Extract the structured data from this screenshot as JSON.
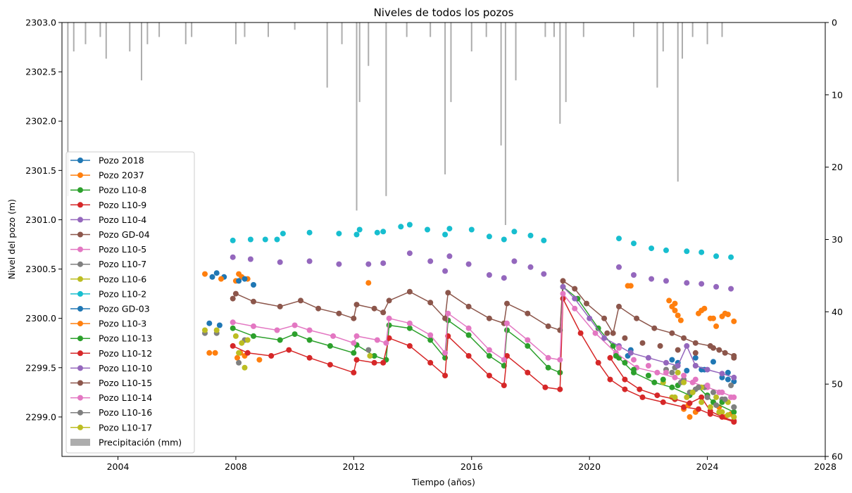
{
  "chart_data": {
    "type": "line",
    "title": "Niveles de todos los pozos",
    "xlabel": "Tiempo (años)",
    "ylabel": "Nivel del pozo (m)",
    "xlim": [
      2002.1,
      2028
    ],
    "ylim": [
      2298.6,
      2303.0
    ],
    "y2lim": [
      60,
      0
    ],
    "x_ticks": [
      2004,
      2008,
      2012,
      2016,
      2020,
      2024,
      2028
    ],
    "y_ticks": [
      2299.0,
      2299.5,
      2300.0,
      2300.5,
      2301.0,
      2301.5,
      2302.0,
      2302.5,
      2303.0
    ],
    "y_tick_labels": [
      "2299.0",
      "2299.5",
      "2300.0",
      "2300.5",
      "2301.0",
      "2301.5",
      "2302.0",
      "2302.5",
      "2303.0"
    ],
    "y2_ticks": [
      0,
      10,
      20,
      30,
      40,
      50,
      60
    ],
    "grid": false,
    "legend_position": "left",
    "series": [
      {
        "name": "Pozo 2018",
        "color": "#1f77b4",
        "gaps": true,
        "x": [
          2007.1,
          2007.2,
          2007.35,
          2007.45,
          2007.6,
          2021.4,
          2022.8,
          2023.0,
          2023.3,
          2023.6,
          2023.9,
          2024.2,
          2024.5,
          2024.7,
          2024.9
        ],
        "y": [
          2299.95,
          2300.42,
          2300.46,
          2299.93,
          2300.42,
          2299.68,
          2299.58,
          2299.55,
          2299.47,
          2299.6,
          2299.48,
          2299.56,
          2299.4,
          2299.38,
          2299.36
        ]
      },
      {
        "name": "Pozo 2037",
        "color": "#ff7f0e",
        "gaps": true,
        "x": [
          2006.95,
          2007.1,
          2007.3,
          2007.5,
          2008.0,
          2008.1,
          2008.2,
          2008.3,
          2008.8,
          2008.05,
          2008.15,
          2008.4,
          2012.5,
          2021.4,
          2022.7,
          2022.8,
          2022.9,
          2023.0,
          2023.1,
          2023.7,
          2023.9,
          2024.1,
          2024.3,
          2024.5,
          2024.7,
          2024.9,
          2023.2,
          2023.4,
          2023.6,
          2024.4,
          2024.6,
          2024.8
        ],
        "y": [
          2300.45,
          2299.65,
          2299.65,
          2300.4,
          2300.38,
          2300.45,
          2300.42,
          2299.62,
          2299.58,
          2299.6,
          2299.65,
          2300.4,
          2300.36,
          2300.33,
          2300.18,
          2300.12,
          2300.08,
          2300.03,
          2299.98,
          2300.05,
          2300.1,
          2300.0,
          2299.92,
          2300.02,
          2300.04,
          2299.97,
          2299.08,
          2299.0,
          2299.05,
          2299.1,
          2299.0,
          2299.03
        ]
      },
      {
        "name": "Pozo L10-8",
        "color": "#2ca02c",
        "gaps": false,
        "x": [
          2007.9,
          2008.6,
          2009.5,
          2010.0,
          2010.5,
          2011.2,
          2012.0,
          2012.1,
          2012.7,
          2013.1,
          2013.2,
          2013.9,
          2014.6,
          2015.1,
          2015.2,
          2015.9,
          2016.6,
          2017.1,
          2017.2,
          2017.9,
          2018.6,
          2019.0,
          2019.1,
          2019.6,
          2020.3,
          2020.8,
          2021.0,
          2021.5,
          2022.2,
          2022.8,
          2023.4,
          2023.7,
          2024.2,
          2024.9
        ],
        "y": [
          2299.9,
          2299.82,
          2299.78,
          2299.84,
          2299.78,
          2299.72,
          2299.65,
          2299.73,
          2299.62,
          2299.58,
          2299.93,
          2299.9,
          2299.78,
          2299.6,
          2299.98,
          2299.83,
          2299.62,
          2299.52,
          2299.88,
          2299.72,
          2299.5,
          2299.45,
          2300.32,
          2300.2,
          2299.9,
          2299.72,
          2299.6,
          2299.45,
          2299.35,
          2299.3,
          2299.22,
          2299.3,
          2299.15,
          2299.05
        ]
      },
      {
        "name": "Pozo L10-9",
        "color": "#d62728",
        "gaps": false,
        "x": [
          2007.9,
          2008.4,
          2009.2,
          2009.8,
          2010.5,
          2011.2,
          2012.0,
          2012.1,
          2012.7,
          2013.0,
          2013.2,
          2013.9,
          2014.6,
          2015.1,
          2015.2,
          2015.9,
          2016.6,
          2017.1,
          2017.2,
          2017.9,
          2018.5,
          2019.0,
          2019.1,
          2019.7,
          2020.3,
          2020.7,
          2021.2,
          2021.8,
          2022.5,
          2023.2,
          2023.7,
          2024.1,
          2024.9
        ],
        "y": [
          2299.72,
          2299.65,
          2299.62,
          2299.68,
          2299.6,
          2299.53,
          2299.45,
          2299.58,
          2299.55,
          2299.55,
          2299.8,
          2299.72,
          2299.55,
          2299.42,
          2299.82,
          2299.62,
          2299.42,
          2299.32,
          2299.62,
          2299.45,
          2299.3,
          2299.28,
          2300.2,
          2299.85,
          2299.55,
          2299.38,
          2299.28,
          2299.2,
          2299.15,
          2299.1,
          2299.08,
          2299.03,
          2298.95
        ]
      },
      {
        "name": "Pozo L10-4",
        "color": "#9467bd",
        "gaps": true,
        "x": [
          2007.9,
          2008.5,
          2009.5,
          2010.5,
          2011.5,
          2012.5,
          2013.0,
          2013.9,
          2014.6,
          2015.1,
          2015.25,
          2015.9,
          2016.6,
          2017.1,
          2017.45,
          2018.0,
          2018.45,
          2021.0,
          2021.5,
          2022.1,
          2022.6,
          2023.3,
          2023.8,
          2024.3,
          2024.8
        ],
        "y": [
          2300.62,
          2300.6,
          2300.57,
          2300.58,
          2300.55,
          2300.55,
          2300.56,
          2300.66,
          2300.58,
          2300.48,
          2300.63,
          2300.55,
          2300.44,
          2300.41,
          2300.58,
          2300.52,
          2300.45,
          2300.52,
          2300.44,
          2300.4,
          2300.38,
          2300.36,
          2300.35,
          2300.32,
          2300.3
        ]
      },
      {
        "name": "Pozo GD-04",
        "color": "#8c564b",
        "gaps": false,
        "x": [
          2007.9,
          2008.0,
          2008.6,
          2009.5,
          2010.2,
          2010.8,
          2011.5,
          2012.0,
          2012.1,
          2012.7,
          2013.0,
          2013.2,
          2013.9,
          2014.6,
          2015.1,
          2015.2,
          2015.9,
          2016.6,
          2017.1,
          2017.2,
          2017.9,
          2018.6,
          2019.0,
          2019.1,
          2019.5,
          2019.9,
          2020.5,
          2020.8,
          2021.0,
          2021.6,
          2022.2,
          2022.8,
          2023.2,
          2023.6,
          2024.1,
          2024.4,
          2024.9
        ],
        "y": [
          2300.2,
          2300.25,
          2300.17,
          2300.12,
          2300.18,
          2300.1,
          2300.05,
          2300.0,
          2300.14,
          2300.1,
          2300.06,
          2300.18,
          2300.27,
          2300.16,
          2300.0,
          2300.26,
          2300.12,
          2300.0,
          2299.95,
          2300.15,
          2300.05,
          2299.92,
          2299.88,
          2300.38,
          2300.3,
          2300.15,
          2300.0,
          2299.85,
          2300.12,
          2300.0,
          2299.9,
          2299.85,
          2299.8,
          2299.75,
          2299.72,
          2299.68,
          2299.62
        ]
      },
      {
        "name": "Pozo L10-5",
        "color": "#e377c2",
        "gaps": false,
        "x": [
          2007.9,
          2008.6,
          2009.4,
          2010.0,
          2010.5,
          2011.3,
          2012.0,
          2012.1,
          2012.8,
          2013.1,
          2013.2,
          2013.9,
          2014.6,
          2015.1,
          2015.2,
          2015.9,
          2016.6,
          2017.1,
          2017.2,
          2017.9,
          2018.6,
          2019.0,
          2019.1,
          2019.5,
          2020.2,
          2020.9,
          2021.6,
          2022.3,
          2022.9,
          2023.5,
          2024.0,
          2024.5,
          2024.9
        ],
        "y": [
          2299.96,
          2299.92,
          2299.88,
          2299.93,
          2299.88,
          2299.82,
          2299.75,
          2299.82,
          2299.78,
          2299.75,
          2300.0,
          2299.95,
          2299.83,
          2299.65,
          2300.05,
          2299.9,
          2299.68,
          2299.58,
          2299.95,
          2299.78,
          2299.6,
          2299.58,
          2300.25,
          2300.1,
          2299.85,
          2299.65,
          2299.5,
          2299.45,
          2299.4,
          2299.35,
          2299.3,
          2299.25,
          2299.2
        ]
      },
      {
        "name": "Pozo L10-7",
        "color": "#7f7f7f",
        "gaps": true,
        "x": [
          2006.95,
          2007.35,
          2008.1,
          2008.3,
          2012.5,
          2022.6,
          2022.9,
          2023.2,
          2023.6,
          2023.9,
          2024.2,
          2024.5,
          2024.8
        ],
        "y": [
          2299.85,
          2299.85,
          2299.55,
          2299.78,
          2299.68,
          2299.48,
          2299.5,
          2299.38,
          2299.28,
          2299.3,
          2299.25,
          2299.18,
          2299.32
        ]
      },
      {
        "name": "Pozo L10-6",
        "color": "#bcbd22",
        "gaps": true,
        "x": [
          2006.95,
          2007.35,
          2008.0,
          2008.1,
          2008.2,
          2008.3,
          2008.4,
          2012.55,
          2022.5,
          2022.8,
          2023.0,
          2023.3,
          2023.6,
          2023.8,
          2024.1,
          2024.3,
          2024.5,
          2024.7,
          2024.9
        ],
        "y": [
          2299.88,
          2299.88,
          2299.82,
          2299.65,
          2299.75,
          2299.5,
          2299.78,
          2299.62,
          2299.35,
          2299.2,
          2299.45,
          2299.2,
          2299.52,
          2299.3,
          2299.1,
          2299.2,
          2299.05,
          2299.15,
          2299.0
        ]
      },
      {
        "name": "Pozo L10-2",
        "color": "#17becf",
        "gaps": true,
        "x": [
          2007.9,
          2008.5,
          2009.0,
          2009.4,
          2009.6,
          2010.5,
          2011.5,
          2012.1,
          2012.2,
          2012.8,
          2013.0,
          2013.6,
          2013.9,
          2014.5,
          2015.1,
          2015.25,
          2016.0,
          2016.6,
          2017.1,
          2017.45,
          2018.0,
          2018.45,
          2021.0,
          2021.5,
          2022.1,
          2022.6,
          2023.3,
          2023.8,
          2024.3,
          2024.8
        ],
        "y": [
          2300.79,
          2300.8,
          2300.8,
          2300.8,
          2300.86,
          2300.87,
          2300.86,
          2300.85,
          2300.9,
          2300.87,
          2300.88,
          2300.93,
          2300.95,
          2300.9,
          2300.85,
          2300.91,
          2300.9,
          2300.83,
          2300.8,
          2300.88,
          2300.84,
          2300.79,
          2300.81,
          2300.76,
          2300.71,
          2300.69,
          2300.68,
          2300.67,
          2300.63,
          2300.62
        ]
      },
      {
        "name": "Pozo GD-03",
        "color": "#1f77b4",
        "gaps": true,
        "x": [
          2008.1,
          2008.3,
          2008.6,
          2021.3,
          2023.8,
          2024.7
        ],
        "y": [
          2300.38,
          2300.4,
          2300.34,
          2299.62,
          2299.48,
          2299.45
        ]
      },
      {
        "name": "Pozo L10-3",
        "color": "#ff7f0e",
        "gaps": true,
        "x": [
          2021.3,
          2022.9,
          2023.35,
          2023.8,
          2024.2,
          2024.6
        ],
        "y": [
          2300.33,
          2300.15,
          2299.12,
          2300.08,
          2300.0,
          2300.05
        ]
      },
      {
        "name": "Pozo L10-13",
        "color": "#2ca02c",
        "gaps": true,
        "x": [
          2020.9,
          2021.2,
          2021.5,
          2022.0,
          2022.5,
          2023.0,
          2023.5,
          2024.0,
          2024.5,
          2024.9
        ],
        "y": [
          2299.62,
          2299.55,
          2299.48,
          2299.42,
          2299.38,
          2299.32,
          2299.25,
          2299.22,
          2299.15,
          2299.1
        ]
      },
      {
        "name": "Pozo L10-12",
        "color": "#d62728",
        "gaps": false,
        "x": [
          2020.7,
          2021.2,
          2021.7,
          2022.3,
          2022.9,
          2023.4,
          2023.8,
          2024.1,
          2024.5,
          2024.9
        ],
        "y": [
          2299.6,
          2299.38,
          2299.28,
          2299.22,
          2299.18,
          2299.14,
          2299.2,
          2299.06,
          2299.0,
          2298.96
        ]
      },
      {
        "name": "Pozo L10-10",
        "color": "#9467bd",
        "gaps": false,
        "x": [
          2019.1,
          2019.5,
          2020.0,
          2020.5,
          2021.0,
          2021.4,
          2022.0,
          2022.6,
          2023.0,
          2023.3,
          2023.6,
          2024.0,
          2024.5,
          2024.9
        ],
        "y": [
          2300.32,
          2300.2,
          2300.0,
          2299.8,
          2299.72,
          2299.65,
          2299.6,
          2299.55,
          2299.52,
          2299.72,
          2299.52,
          2299.48,
          2299.44,
          2299.4
        ]
      },
      {
        "name": "Pozo L10-15",
        "color": "#8c564b",
        "gaps": true,
        "x": [
          2020.6,
          2021.2,
          2021.8,
          2022.4,
          2023.0,
          2023.6,
          2024.2,
          2024.6,
          2024.9
        ],
        "y": [
          2299.85,
          2299.8,
          2299.75,
          2299.72,
          2299.68,
          2299.65,
          2299.7,
          2299.65,
          2299.6
        ]
      },
      {
        "name": "Pozo L10-14",
        "color": "#e377c2",
        "gaps": true,
        "x": [
          2021.0,
          2021.5,
          2022.0,
          2022.6,
          2023.2,
          2023.6,
          2024.0,
          2024.4,
          2024.8
        ],
        "y": [
          2299.7,
          2299.58,
          2299.52,
          2299.45,
          2299.42,
          2299.38,
          2299.32,
          2299.25,
          2299.2
        ]
      },
      {
        "name": "Pozo L10-16",
        "color": "#7f7f7f",
        "gaps": true,
        "x": [
          2022.8,
          2023.1,
          2023.4,
          2023.7,
          2024.0,
          2024.3,
          2024.6,
          2024.9
        ],
        "y": [
          2299.45,
          2299.35,
          2299.25,
          2299.3,
          2299.2,
          2299.12,
          2299.18,
          2299.1
        ]
      },
      {
        "name": "Pozo L10-17",
        "color": "#bcbd22",
        "gaps": true,
        "x": [
          2022.9,
          2023.2,
          2023.5,
          2023.8,
          2024.1,
          2024.4,
          2024.7,
          2024.9
        ],
        "y": [
          2299.2,
          2299.35,
          2299.25,
          2299.15,
          2299.1,
          2299.05,
          2299.02,
          2299.0
        ]
      }
    ],
    "precipitation": {
      "name": "Precipitación (mm)",
      "color": "#999999",
      "x": [
        2002.3,
        2002.5,
        2002.9,
        2003.4,
        2003.6,
        2004.4,
        2004.8,
        2005.0,
        2005.4,
        2006.3,
        2006.5,
        2008.0,
        2008.3,
        2009.1,
        2010.0,
        2011.1,
        2011.6,
        2012.1,
        2012.2,
        2012.5,
        2013.1,
        2013.8,
        2014.6,
        2015.1,
        2015.3,
        2016.0,
        2016.5,
        2017.0,
        2017.15,
        2017.5,
        2018.5,
        2018.8,
        2019.0,
        2019.2,
        2019.8,
        2021.5,
        2022.3,
        2022.5,
        2023.0,
        2023.15,
        2023.5,
        2024.0,
        2024.5
      ],
      "values": [
        24,
        4,
        3,
        2,
        5,
        4,
        8,
        3,
        2,
        3,
        2,
        3,
        2,
        2,
        1,
        9,
        3,
        26,
        11,
        6,
        24,
        2,
        2,
        21,
        11,
        4,
        2,
        17,
        28,
        8,
        2,
        2,
        14,
        11,
        2,
        2,
        9,
        4,
        22,
        5,
        2,
        3,
        2
      ]
    }
  }
}
